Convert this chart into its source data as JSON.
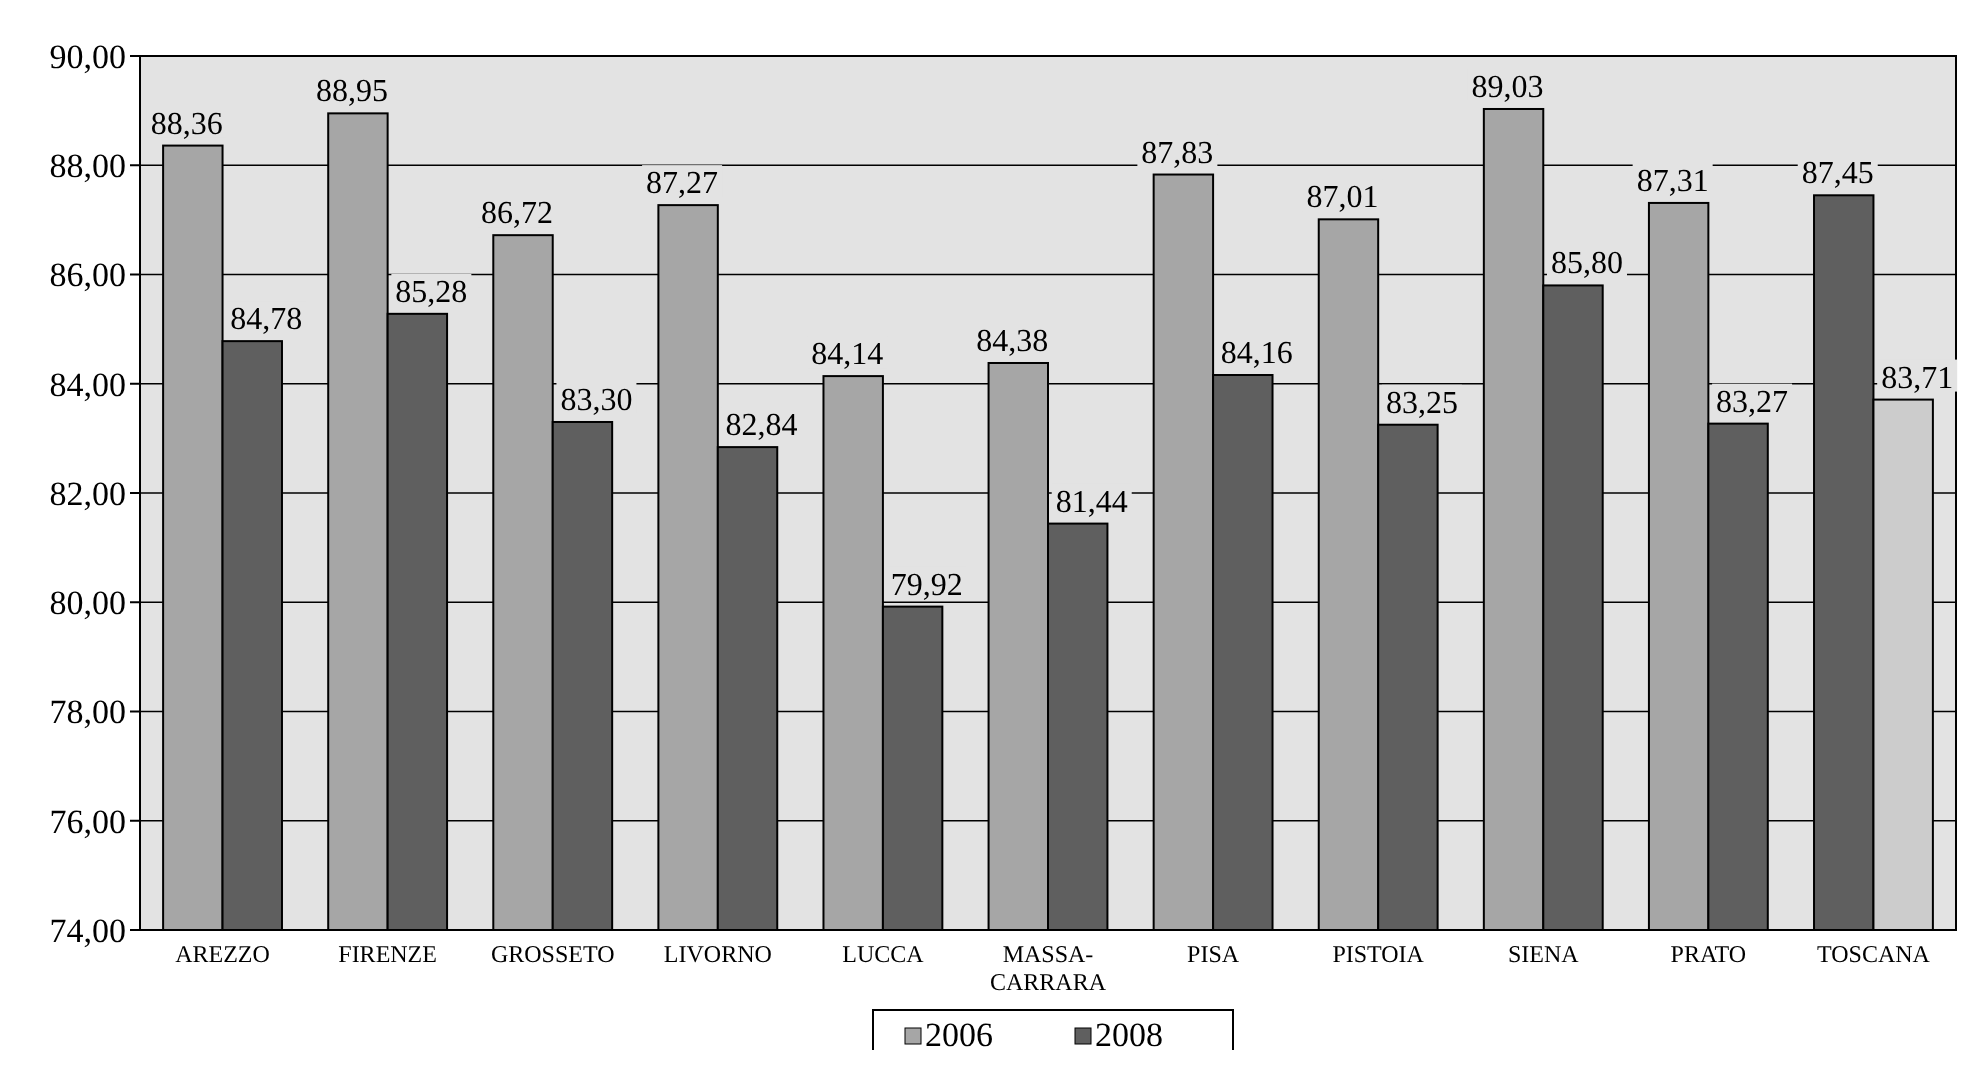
{
  "chart_data": {
    "type": "bar",
    "categories": [
      "AREZZO",
      "FIRENZE",
      "GROSSETO",
      "LIVORNO",
      "LUCCA",
      "MASSA-CARRARA",
      "PISA",
      "PISTOIA",
      "SIENA",
      "PRATO",
      "TOSCANA"
    ],
    "series": [
      {
        "name": "2006",
        "color": "#a6a6a6",
        "colors": [
          "#a6a6a6",
          "#a6a6a6",
          "#a6a6a6",
          "#a6a6a6",
          "#a6a6a6",
          "#a6a6a6",
          "#a6a6a6",
          "#a6a6a6",
          "#a6a6a6",
          "#a6a6a6",
          "#5f5f5f"
        ],
        "values": [
          88.36,
          88.95,
          86.72,
          87.27,
          84.14,
          84.38,
          87.83,
          87.01,
          89.03,
          87.31,
          87.45
        ],
        "value_labels": [
          "88,36",
          "88,95",
          "86,72",
          "87,27",
          "84,14",
          "84,38",
          "87,83",
          "87,01",
          "89,03",
          "87,31",
          "87,45"
        ]
      },
      {
        "name": "2008",
        "color": "#5f5f5f",
        "colors": [
          "#5f5f5f",
          "#5f5f5f",
          "#5f5f5f",
          "#5f5f5f",
          "#5f5f5f",
          "#5f5f5f",
          "#5f5f5f",
          "#5f5f5f",
          "#5f5f5f",
          "#5f5f5f",
          "#cccccc"
        ],
        "values": [
          84.78,
          85.28,
          83.3,
          82.84,
          79.92,
          81.44,
          84.16,
          83.25,
          85.8,
          83.27,
          83.71
        ],
        "value_labels": [
          "84,78",
          "85,28",
          "83,30",
          "82,84",
          "79,92",
          "81,44",
          "84,16",
          "83,25",
          "85,80",
          "83,27",
          "83,71"
        ]
      }
    ],
    "ylim": [
      74,
      90
    ],
    "yticks": [
      {
        "value": 74,
        "label": "74,00"
      },
      {
        "value": 76,
        "label": "76,00"
      },
      {
        "value": 78,
        "label": "78,00"
      },
      {
        "value": 80,
        "label": "80,00"
      },
      {
        "value": 82,
        "label": "82,00"
      },
      {
        "value": 84,
        "label": "84,00"
      },
      {
        "value": 86,
        "label": "86,00"
      },
      {
        "value": 88,
        "label": "88,00"
      },
      {
        "value": 90,
        "label": "90,00"
      }
    ],
    "grid": "y",
    "legend": "bottom"
  }
}
